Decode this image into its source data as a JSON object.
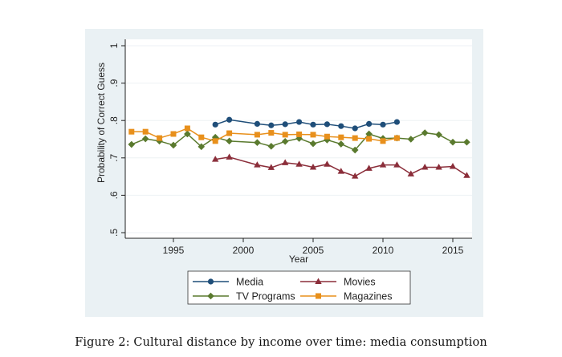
{
  "chart_data": {
    "type": "line",
    "title": "",
    "xlabel": "Year",
    "ylabel": "Probability of Correct Guess",
    "xlim": [
      1991.3,
      2016.5
    ],
    "ylim": [
      0.5,
      1.0
    ],
    "xticks": [
      1995,
      2000,
      2005,
      2010,
      2015
    ],
    "xtick_labels": [
      "1995",
      "2000",
      "2005",
      "2010",
      "2015"
    ],
    "yticks": [
      0.5,
      0.6,
      0.7,
      0.8,
      0.9,
      1.0
    ],
    "ytick_labels": [
      ".5",
      ".6",
      ".7",
      ".8",
      ".9",
      "1"
    ],
    "grid": true,
    "legend_position": "bottom",
    "series": [
      {
        "name": "Media",
        "color": "#1f4e79",
        "marker": "circle",
        "x": [
          1998,
          1999,
          2001,
          2002,
          2003,
          2004,
          2005,
          2006,
          2007,
          2008,
          2009,
          2010,
          2011
        ],
        "y": [
          0.789,
          0.802,
          0.791,
          0.787,
          0.79,
          0.796,
          0.789,
          0.79,
          0.785,
          0.779,
          0.791,
          0.789,
          0.796
        ]
      },
      {
        "name": "Movies",
        "color": "#8b2e3a",
        "marker": "triangle",
        "x": [
          1998,
          1999,
          2001,
          2002,
          2003,
          2004,
          2005,
          2006,
          2007,
          2008,
          2009,
          2010,
          2011,
          2012,
          2013,
          2014,
          2015,
          2016
        ],
        "y": [
          0.696,
          0.702,
          0.681,
          0.674,
          0.687,
          0.683,
          0.675,
          0.683,
          0.664,
          0.651,
          0.672,
          0.681,
          0.681,
          0.657,
          0.675,
          0.675,
          0.677,
          0.653
        ]
      },
      {
        "name": "TV Programs",
        "color": "#5a7a2e",
        "marker": "diamond",
        "x": [
          1992,
          1993,
          1994,
          1995,
          1996,
          1997,
          1998,
          1999,
          2001,
          2002,
          2003,
          2004,
          2005,
          2006,
          2007,
          2008,
          2009,
          2010,
          2011,
          2012,
          2013,
          2014,
          2015,
          2016
        ],
        "y": [
          0.736,
          0.751,
          0.745,
          0.734,
          0.764,
          0.73,
          0.755,
          0.745,
          0.741,
          0.731,
          0.744,
          0.752,
          0.738,
          0.748,
          0.737,
          0.721,
          0.764,
          0.752,
          0.753,
          0.75,
          0.767,
          0.762,
          0.742,
          0.742
        ]
      },
      {
        "name": "Magazines",
        "color": "#e8901c",
        "marker": "square",
        "x": [
          1992,
          1993,
          1994,
          1995,
          1996,
          1997,
          1998,
          1999,
          2001,
          2002,
          2003,
          2004,
          2005,
          2006,
          2007,
          2008,
          2009,
          2010,
          2011
        ],
        "y": [
          0.77,
          0.77,
          0.753,
          0.764,
          0.779,
          0.755,
          0.745,
          0.766,
          0.762,
          0.767,
          0.762,
          0.763,
          0.762,
          0.757,
          0.755,
          0.753,
          0.751,
          0.745,
          0.753
        ]
      }
    ],
    "legend": [
      {
        "label": "Media",
        "series": 0
      },
      {
        "label": "Movies",
        "series": 1
      },
      {
        "label": "TV Programs",
        "series": 2
      },
      {
        "label": "Magazines",
        "series": 3
      }
    ]
  },
  "caption": "Figure 2: Cultural distance by income over time: media consumption"
}
